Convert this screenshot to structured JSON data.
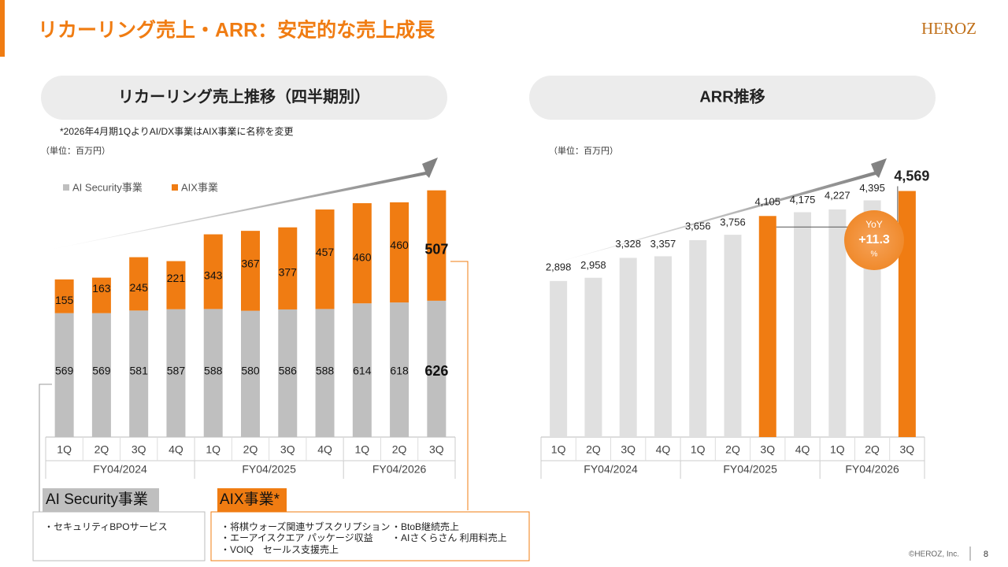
{
  "header": {
    "title": "リカーリング売上・ARR：安定的な売上成長",
    "logo": "HEROZ"
  },
  "chart_data": [
    {
      "type": "stacked_bar",
      "title": "リカーリング売上推移（四半期別）",
      "note": "*2026年4月期1QよりAI/DX事業はAIX事業に名称を変更",
      "unit": "（単位：百万円）",
      "categories": [
        "1Q",
        "2Q",
        "3Q",
        "4Q",
        "1Q",
        "2Q",
        "3Q",
        "4Q",
        "1Q",
        "2Q",
        "3Q"
      ],
      "groups": [
        "FY04/2024",
        "FY04/2025",
        "FY04/2026"
      ],
      "series": [
        {
          "name": "AI Security事業",
          "color": "#bfbfbf",
          "values": [
            569,
            569,
            581,
            587,
            588,
            580,
            586,
            588,
            614,
            618,
            626
          ]
        },
        {
          "name": "AIX事業",
          "color": "#f07c12",
          "values": [
            155,
            163,
            245,
            221,
            343,
            367,
            377,
            457,
            460,
            460,
            507
          ]
        }
      ],
      "ylim": [
        0,
        1150
      ],
      "legend": "top-left"
    },
    {
      "type": "bar",
      "title": "ARR推移",
      "unit": "（単位：百万円）",
      "categories": [
        "1Q",
        "2Q",
        "3Q",
        "4Q",
        "1Q",
        "2Q",
        "3Q",
        "4Q",
        "1Q",
        "2Q",
        "3Q"
      ],
      "groups": [
        "FY04/2024",
        "FY04/2025",
        "FY04/2026"
      ],
      "values": [
        2898,
        2958,
        3328,
        3357,
        3656,
        3756,
        4105,
        4175,
        4227,
        4395,
        4569
      ],
      "value_labels": [
        "2,898",
        "2,958",
        "3,328",
        "3,357",
        "3,656",
        "3,756",
        "4,105",
        "4,175",
        "4,227",
        "4,395",
        "4,569"
      ],
      "colors": [
        "#e0e0e0",
        "#e0e0e0",
        "#e0e0e0",
        "#e0e0e0",
        "#e0e0e0",
        "#e0e0e0",
        "#f07c12",
        "#e0e0e0",
        "#e0e0e0",
        "#e0e0e0",
        "#f07c12"
      ],
      "ylim": [
        0,
        4650
      ],
      "callout": {
        "label": "YoY",
        "value": "+11.3",
        "unit": "%"
      }
    }
  ],
  "boxes": [
    {
      "title": "AI Security事業",
      "items": [
        "・セキュリティBPOサービス"
      ]
    },
    {
      "title": "AIX事業*",
      "items": [
        "・将棋ウォーズ関連サブスクリプション",
        "・エーアイスクエア パッケージ収益",
        "・VOIQ　セールス支援売上",
        "・BtoB継続売上",
        "・AIさくらさん 利用料売上"
      ]
    }
  ],
  "footer": {
    "copyright": "©HEROZ, Inc.",
    "page": "8"
  }
}
